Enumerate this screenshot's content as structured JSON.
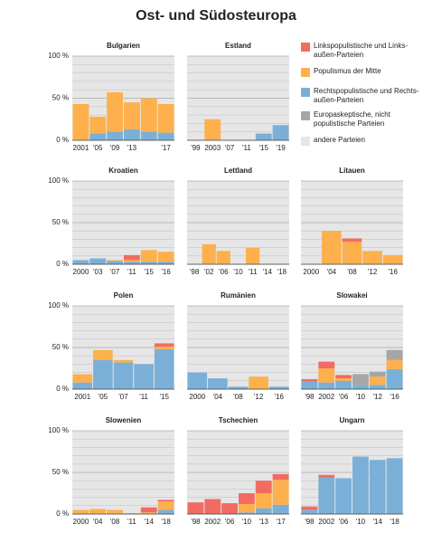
{
  "chart_data": {
    "type": "bar",
    "stacked": true,
    "title": "Ost- und Südosteuropa",
    "legend": [
      {
        "name": "Linkspopulistische und Links-außen-Parteien",
        "color": "#f26b63"
      },
      {
        "name": "Populismus der Mitte",
        "color": "#fdb04b"
      },
      {
        "name": "Rechtspopulistische und Rechts-außen-Parteien",
        "color": "#7ab0d8"
      },
      {
        "name": "Europaskeptische, nicht populistische Parteien",
        "color": "#a6a6a6"
      },
      {
        "name": "andere Parteien",
        "color": "#e6e6e6"
      }
    ],
    "ylim": [
      0,
      100
    ],
    "yticks": [
      {
        "value": 0,
        "label": "0 %"
      },
      {
        "value": 50,
        "label": "50 %"
      },
      {
        "value": 100,
        "label": "100 %"
      }
    ],
    "minor_yticks": [
      10,
      20,
      30,
      40,
      60,
      70,
      80,
      90
    ],
    "panels": [
      {
        "title": "Bulgarien",
        "categories": [
          "2001",
          "'05",
          "'09",
          "'13",
          null,
          "'17"
        ],
        "series": [
          {
            "values": [
              0,
              0,
              0,
              0,
              0,
              0
            ]
          },
          {
            "values": [
              43,
              20,
              47,
              32,
              40,
              34
            ]
          },
          {
            "values": [
              0,
              8,
              10,
              13,
              10,
              9
            ]
          },
          {
            "values": [
              0,
              0,
              0,
              0,
              0,
              0
            ]
          }
        ]
      },
      {
        "title": "Estland",
        "categories": [
          "'99",
          "2003",
          "'07",
          "'11",
          "'15",
          "'19"
        ],
        "series": [
          {
            "values": [
              0,
              0,
              0,
              0,
              0,
              0
            ]
          },
          {
            "values": [
              0,
              25,
              0,
              0,
              0,
              0
            ]
          },
          {
            "values": [
              0,
              0,
              0,
              0,
              8,
              18
            ]
          },
          {
            "values": [
              0,
              0,
              0,
              0,
              0,
              0
            ]
          }
        ]
      },
      {
        "title": "Kroatien",
        "categories": [
          "2000",
          "'03",
          "'07",
          "'11",
          "'15",
          "'16"
        ],
        "series": [
          {
            "values": [
              0,
              0,
              0,
              6,
              0,
              0
            ]
          },
          {
            "values": [
              0,
              0,
              1,
              2,
              14,
              12
            ]
          },
          {
            "values": [
              5,
              7,
              4,
              3,
              3,
              3
            ]
          },
          {
            "values": [
              0,
              0,
              0,
              0,
              0,
              0
            ]
          }
        ]
      },
      {
        "title": "Lettland",
        "categories": [
          "'98",
          "'02",
          "'06",
          "'10",
          "'11",
          "'14",
          "'18"
        ],
        "series": [
          {
            "values": [
              0,
              0,
              0,
              0,
              0,
              0,
              0
            ]
          },
          {
            "values": [
              0,
              24,
              16,
              0,
              20,
              0,
              0
            ]
          },
          {
            "values": [
              0,
              0,
              0,
              0,
              0,
              0,
              0
            ]
          },
          {
            "values": [
              0,
              0,
              0,
              0,
              0,
              0,
              0
            ]
          }
        ]
      },
      {
        "title": "Litauen",
        "categories": [
          "2000",
          "'04",
          "'08",
          "'12",
          "'16"
        ],
        "series": [
          {
            "values": [
              0,
              0,
              4,
              0,
              0
            ]
          },
          {
            "values": [
              0,
              40,
              27,
              16,
              11
            ]
          },
          {
            "values": [
              0,
              0,
              0,
              0,
              0
            ]
          },
          {
            "values": [
              0,
              0,
              0,
              0,
              0
            ]
          }
        ]
      },
      {
        "title": "Polen",
        "categories": [
          "2001",
          "'05",
          "'07",
          "'11",
          "'15"
        ],
        "series": [
          {
            "values": [
              0,
              0,
              0,
              0,
              4
            ]
          },
          {
            "values": [
              10,
              12,
              3,
              0,
              3
            ]
          },
          {
            "values": [
              8,
              35,
              32,
              30,
              48
            ]
          },
          {
            "values": [
              0,
              0,
              0,
              0,
              0
            ]
          }
        ]
      },
      {
        "title": "Rumänien",
        "categories": [
          "2000",
          "'04",
          "'08",
          "'12",
          "'16"
        ],
        "series": [
          {
            "values": [
              0,
              0,
              0,
              0,
              0
            ]
          },
          {
            "values": [
              0,
              0,
              0,
              15,
              0
            ]
          },
          {
            "values": [
              20,
              13,
              3,
              0,
              3
            ]
          },
          {
            "values": [
              0,
              0,
              0,
              0,
              0
            ]
          }
        ]
      },
      {
        "title": "Slowakei",
        "categories": [
          "'98",
          "2002",
          "'06",
          "'10",
          "'12",
          "'16"
        ],
        "series": [
          {
            "values": [
              3,
              8,
              4,
              0,
              0,
              0
            ]
          },
          {
            "values": [
              0,
              17,
              3,
              0,
              10,
              11
            ]
          },
          {
            "values": [
              9,
              8,
              10,
              5,
              5,
              24
            ]
          },
          {
            "values": [
              0,
              0,
              0,
              13,
              6,
              12
            ]
          }
        ]
      },
      {
        "title": "Slowenien",
        "categories": [
          "2000",
          "'04",
          "'08",
          "'11",
          "'14",
          "'18"
        ],
        "series": [
          {
            "values": [
              0,
              0,
              0,
              0,
              6,
              2
            ]
          },
          {
            "values": [
              5,
              6,
              5,
              1,
              2,
              10
            ]
          },
          {
            "values": [
              0,
              0,
              0,
              0,
              0,
              5
            ]
          },
          {
            "values": [
              0,
              0,
              0,
              0,
              0,
              0
            ]
          }
        ]
      },
      {
        "title": "Tschechien",
        "categories": [
          "'98",
          "2002",
          "'06",
          "'10",
          "'13",
          "'17"
        ],
        "series": [
          {
            "values": [
              14,
              18,
              13,
              13,
              15,
              7
            ]
          },
          {
            "values": [
              0,
              0,
              0,
              10,
              18,
              30
            ]
          },
          {
            "values": [
              0,
              0,
              0,
              2,
              7,
              11
            ]
          },
          {
            "values": [
              0,
              0,
              0,
              0,
              0,
              0
            ]
          }
        ]
      },
      {
        "title": "Ungarn",
        "categories": [
          "'98",
          "2002",
          "'06",
          "'10",
          "'14",
          "'18"
        ],
        "series": [
          {
            "values": [
              4,
              3,
              0,
              0,
              0,
              0
            ]
          },
          {
            "values": [
              0,
              0,
              0,
              0,
              0,
              0
            ]
          },
          {
            "values": [
              5,
              44,
              43,
              69,
              65,
              67
            ]
          },
          {
            "values": [
              0,
              0,
              0,
              0,
              0,
              0
            ]
          }
        ]
      }
    ]
  }
}
